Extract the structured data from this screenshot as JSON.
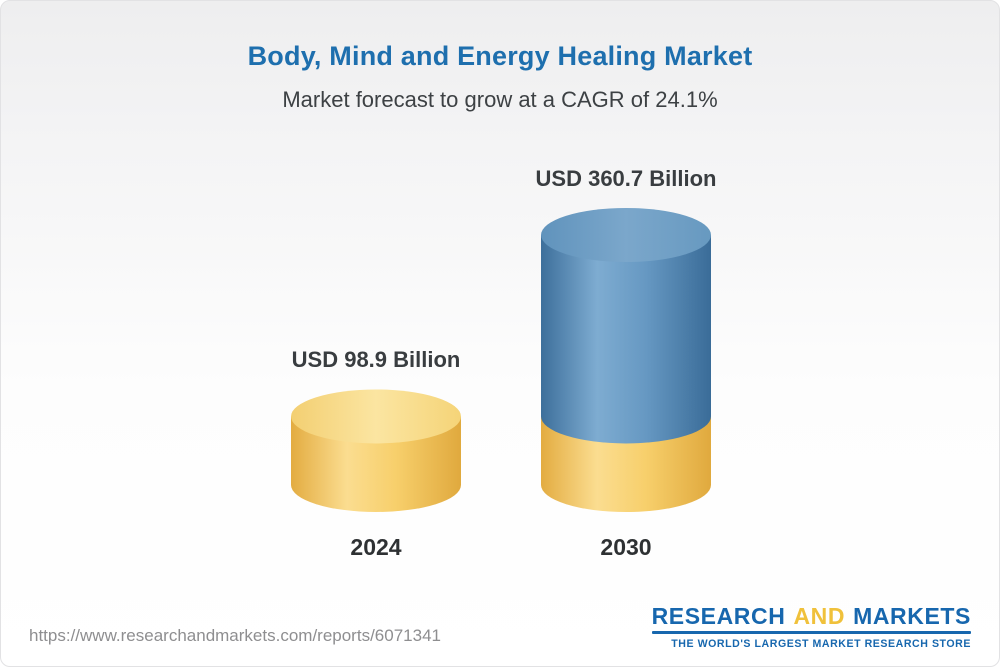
{
  "header": {
    "title": "Body, Mind and Energy Healing Market",
    "subtitle": "Market forecast to grow at a CAGR of 24.1%"
  },
  "chart_data": {
    "type": "bar",
    "title": "Body, Mind and Energy Healing Market",
    "subtitle": "Market forecast to grow at a CAGR of 24.1%",
    "categories": [
      "2024",
      "2030"
    ],
    "values": [
      98.9,
      360.7
    ],
    "unit": "USD Billion",
    "value_labels": [
      "USD 98.9 Billion",
      "USD 360.7 Billion"
    ],
    "cagr_percent": 24.1,
    "legend": "none",
    "grid": "off",
    "colors": {
      "bar_2024": "#F5CE67",
      "bar_2030_growth": "#4E80AB",
      "bar_2030_base": "#F5CE67",
      "title_accent": "#1E6FAE",
      "label_text": "#393D40"
    },
    "notes": "3D cylinder pictorial bar chart; 2030 cylinder has a gold base segment equal to the 2024 value with blue growth portion above"
  },
  "footer": {
    "url": "https://www.researchandmarkets.com/reports/6071341",
    "logo": {
      "word1": "RESEARCH",
      "word2": "AND",
      "word3": "MARKETS",
      "tagline": "THE WORLD'S LARGEST MARKET RESEARCH STORE"
    }
  }
}
